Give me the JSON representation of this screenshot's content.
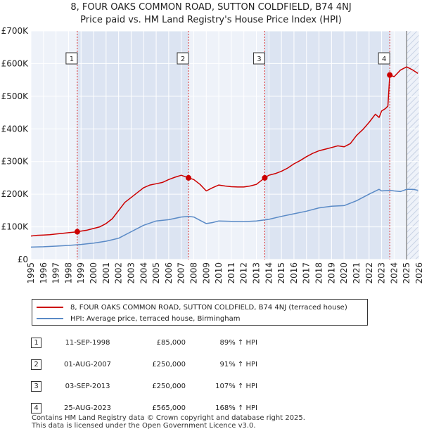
{
  "chart_data": {
    "type": "line",
    "title": "8, FOUR OAKS COMMON ROAD, SUTTON COLDFIELD, B74 4NJ",
    "subtitle": "Price paid vs. HM Land Registry's House Price Index (HPI)",
    "xlabel": "",
    "ylabel": "",
    "xlim": [
      1995,
      2026
    ],
    "ylim": [
      0,
      700000
    ],
    "grid": true,
    "y_ticks": [
      {
        "value": 0,
        "label": "£0"
      },
      {
        "value": 100000,
        "label": "£100K"
      },
      {
        "value": 200000,
        "label": "£200K"
      },
      {
        "value": 300000,
        "label": "£300K"
      },
      {
        "value": 400000,
        "label": "£400K"
      },
      {
        "value": 500000,
        "label": "£500K"
      },
      {
        "value": 600000,
        "label": "£600K"
      },
      {
        "value": 700000,
        "label": "£700K"
      }
    ],
    "x_ticks": [
      "1995",
      "1996",
      "1997",
      "1998",
      "1999",
      "2000",
      "2001",
      "2002",
      "2003",
      "2004",
      "2005",
      "2006",
      "2007",
      "2008",
      "2009",
      "2010",
      "2011",
      "2012",
      "2013",
      "2014",
      "2015",
      "2016",
      "2017",
      "2018",
      "2019",
      "2020",
      "2021",
      "2022",
      "2023",
      "2024",
      "2025",
      "2026"
    ],
    "projection_start": 2025.0,
    "series": [
      {
        "name": "8, FOUR OAKS COMMON ROAD, SUTTON COLDFIELD, B74 4NJ (terraced house)",
        "color": "#cc0000",
        "x": [
          1995.0,
          1995.5,
          1996.0,
          1996.5,
          1997.0,
          1997.5,
          1998.0,
          1998.5,
          1998.7,
          1999.0,
          1999.5,
          2000.0,
          2000.5,
          2001.0,
          2001.5,
          2002.0,
          2002.5,
          2003.0,
          2003.5,
          2004.0,
          2004.5,
          2005.0,
          2005.5,
          2006.0,
          2006.5,
          2007.0,
          2007.58,
          2008.0,
          2008.5,
          2009.0,
          2009.5,
          2010.0,
          2010.5,
          2011.0,
          2011.5,
          2012.0,
          2012.5,
          2013.0,
          2013.67,
          2014.0,
          2014.5,
          2015.0,
          2015.5,
          2016.0,
          2016.5,
          2017.0,
          2017.5,
          2018.0,
          2018.5,
          2019.0,
          2019.5,
          2020.0,
          2020.5,
          2021.0,
          2021.5,
          2022.0,
          2022.5,
          2022.8,
          2023.0,
          2023.3,
          2023.5,
          2023.65,
          2024.0,
          2024.5,
          2025.0,
          2025.5,
          2025.9
        ],
        "values": [
          72000,
          74000,
          75000,
          76000,
          78000,
          80000,
          82000,
          84000,
          85000,
          87000,
          90000,
          95000,
          100000,
          110000,
          125000,
          150000,
          175000,
          190000,
          205000,
          220000,
          228000,
          232000,
          236000,
          245000,
          252000,
          258000,
          250000,
          245000,
          230000,
          210000,
          220000,
          228000,
          225000,
          223000,
          222000,
          222000,
          225000,
          230000,
          250000,
          258000,
          263000,
          270000,
          280000,
          293000,
          303000,
          315000,
          325000,
          333000,
          338000,
          343000,
          348000,
          345000,
          355000,
          380000,
          398000,
          420000,
          445000,
          435000,
          455000,
          462000,
          470000,
          565000,
          560000,
          580000,
          590000,
          580000,
          570000
        ]
      },
      {
        "name": "HPI: Average price, terraced house, Birmingham",
        "color": "#5a8ac6",
        "x": [
          1995.0,
          1996.0,
          1997.0,
          1998.0,
          1999.0,
          2000.0,
          2001.0,
          2002.0,
          2003.0,
          2004.0,
          2005.0,
          2006.0,
          2007.0,
          2007.6,
          2008.0,
          2008.5,
          2009.0,
          2009.5,
          2010.0,
          2011.0,
          2012.0,
          2013.0,
          2014.0,
          2015.0,
          2016.0,
          2017.0,
          2018.0,
          2019.0,
          2020.0,
          2021.0,
          2022.0,
          2022.8,
          2023.0,
          2023.65,
          2024.0,
          2024.5,
          2025.0,
          2025.5,
          2025.9
        ],
        "values": [
          38000,
          39000,
          41000,
          43000,
          46000,
          50000,
          56000,
          65000,
          85000,
          105000,
          118000,
          122000,
          130000,
          132000,
          130000,
          120000,
          110000,
          113000,
          118000,
          117000,
          116000,
          118000,
          123000,
          132000,
          140000,
          148000,
          158000,
          163000,
          165000,
          180000,
          200000,
          215000,
          210000,
          212000,
          210000,
          208000,
          215000,
          215000,
          212000
        ]
      }
    ],
    "sales": [
      {
        "num": "1",
        "date": "11-SEP-1998",
        "x": 1998.7,
        "price_value": 85000,
        "price": "£85,000",
        "hpi": "89% ↑ HPI"
      },
      {
        "num": "2",
        "date": "01-AUG-2007",
        "x": 2007.58,
        "price_value": 250000,
        "price": "£250,000",
        "hpi": "91% ↑ HPI"
      },
      {
        "num": "3",
        "date": "03-SEP-2013",
        "x": 2013.67,
        "price_value": 250000,
        "price": "£250,000",
        "hpi": "107% ↑ HPI"
      },
      {
        "num": "4",
        "date": "25-AUG-2023",
        "x": 2023.65,
        "price_value": 565000,
        "price": "£565,000",
        "hpi": "168% ↑ HPI"
      }
    ]
  },
  "legend": {
    "property_label": "8, FOUR OAKS COMMON ROAD, SUTTON COLDFIELD, B74 4NJ (terraced house)",
    "hpi_label": "HPI: Average price, terraced house, Birmingham"
  },
  "footer": {
    "line1": "Contains HM Land Registry data © Crown copyright and database right 2025.",
    "line2": "This data is licensed under the Open Government Licence v3.0."
  },
  "colors": {
    "property": "#cc0000",
    "hpi": "#5a8ac6",
    "plot_bg": "#eef2f9",
    "shade": "#dce4f2",
    "grid": "#ffffff",
    "vline": "#dd3333"
  }
}
